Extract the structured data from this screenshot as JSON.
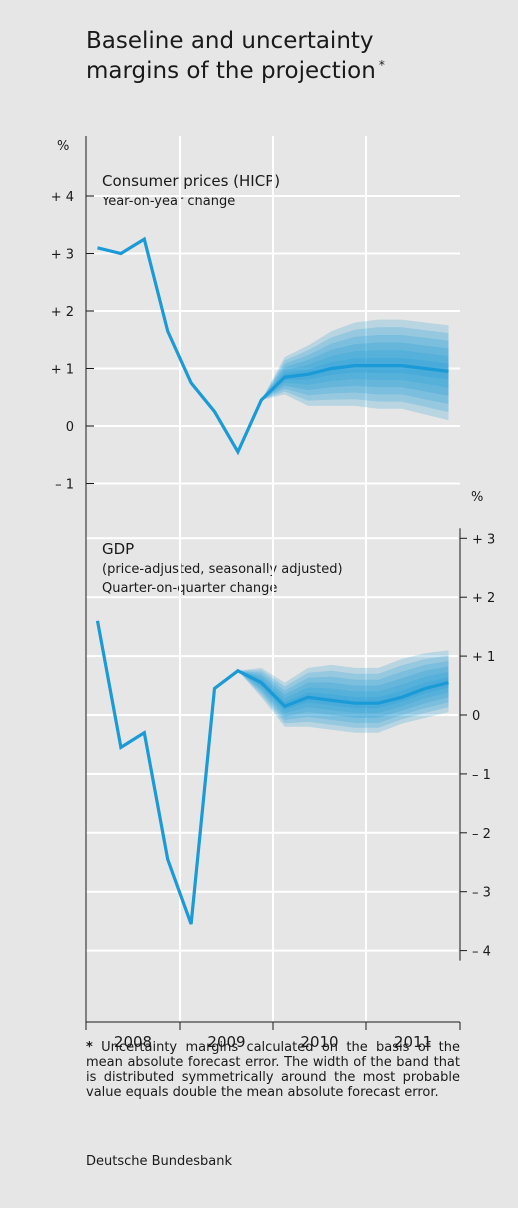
{
  "title_line1": "Baseline and uncertainty",
  "title_line2": "margins of the projection",
  "title_star": "*",
  "colors": {
    "background": "#e6e6e6",
    "line": "#1a9ad6",
    "band_light": "#bfe3f4",
    "band_dark": "#1a9ad6",
    "gridline": "#ffffff",
    "axis": "#1a1a1a"
  },
  "x_ticks": [
    "2008",
    "2009",
    "2010",
    "2011"
  ],
  "chart_data": [
    {
      "type": "line",
      "title": "Consumer prices (HICP)",
      "subtitle": "Year-on-year change",
      "unit": "%",
      "y_axis_side": "left",
      "ylim": [
        -1,
        4
      ],
      "y_ticks": [
        {
          "value": 4,
          "label": "+ 4"
        },
        {
          "value": 3,
          "label": "+ 3"
        },
        {
          "value": 2,
          "label": "+ 2"
        },
        {
          "value": 1,
          "label": "+ 1"
        },
        {
          "value": 0,
          "label": "0"
        },
        {
          "value": -1,
          "label": "– 1"
        }
      ],
      "x": [
        "2008 Q1",
        "2008 Q2",
        "2008 Q3",
        "2008 Q4",
        "2009 Q1",
        "2009 Q2",
        "2009 Q3",
        "2009 Q4",
        "2010 Q1",
        "2010 Q2",
        "2010 Q3",
        "2010 Q4",
        "2011 Q1",
        "2011 Q2",
        "2011 Q3",
        "2011 Q4"
      ],
      "baseline": [
        3.1,
        3.0,
        3.25,
        1.65,
        0.75,
        0.25,
        -0.45,
        0.45,
        0.85,
        0.9,
        1.0,
        1.05,
        1.05,
        1.05,
        1.0,
        0.95
      ],
      "band_lower": [
        null,
        null,
        null,
        null,
        null,
        null,
        null,
        0.45,
        0.55,
        0.35,
        0.35,
        0.35,
        0.3,
        0.3,
        0.2,
        0.1
      ],
      "band_upper": [
        null,
        null,
        null,
        null,
        null,
        null,
        null,
        0.45,
        1.2,
        1.4,
        1.65,
        1.8,
        1.85,
        1.85,
        1.8,
        1.75
      ]
    },
    {
      "type": "line",
      "title": "GDP",
      "subtitle_line1": "(price-adjusted, seasonally adjusted)",
      "subtitle_line2": "Quarter-on-quarter change",
      "unit": "%",
      "y_axis_side": "right",
      "ylim": [
        -4,
        3
      ],
      "y_ticks": [
        {
          "value": 3,
          "label": "+ 3"
        },
        {
          "value": 2,
          "label": "+ 2"
        },
        {
          "value": 1,
          "label": "+ 1"
        },
        {
          "value": 0,
          "label": "0"
        },
        {
          "value": -1,
          "label": "– 1"
        },
        {
          "value": -2,
          "label": "– 2"
        },
        {
          "value": -3,
          "label": "– 3"
        },
        {
          "value": -4,
          "label": "– 4"
        }
      ],
      "x": [
        "2008 Q1",
        "2008 Q2",
        "2008 Q3",
        "2008 Q4",
        "2009 Q1",
        "2009 Q2",
        "2009 Q3",
        "2009 Q4",
        "2010 Q1",
        "2010 Q2",
        "2010 Q3",
        "2010 Q4",
        "2011 Q1",
        "2011 Q2",
        "2011 Q3",
        "2011 Q4"
      ],
      "baseline": [
        1.6,
        -0.55,
        -0.3,
        -2.45,
        -3.55,
        0.45,
        0.75,
        0.55,
        0.15,
        0.3,
        0.25,
        0.2,
        0.2,
        0.3,
        0.45,
        0.55
      ],
      "band_lower": [
        null,
        null,
        null,
        null,
        null,
        null,
        0.75,
        0.3,
        -0.2,
        -0.2,
        -0.25,
        -0.3,
        -0.3,
        -0.15,
        -0.05,
        0.05
      ],
      "band_upper": [
        null,
        null,
        null,
        null,
        null,
        null,
        0.75,
        0.8,
        0.55,
        0.8,
        0.85,
        0.8,
        0.8,
        0.95,
        1.05,
        1.1
      ]
    }
  ],
  "footnote_star": "*",
  "footnote_text": "Uncertainty margins calculated on the basis of the mean absolute forecast error. The width of the band that is distributed symmetrically around the most probable value equals double the mean absolute forecast error.",
  "source": "Deutsche Bundesbank"
}
